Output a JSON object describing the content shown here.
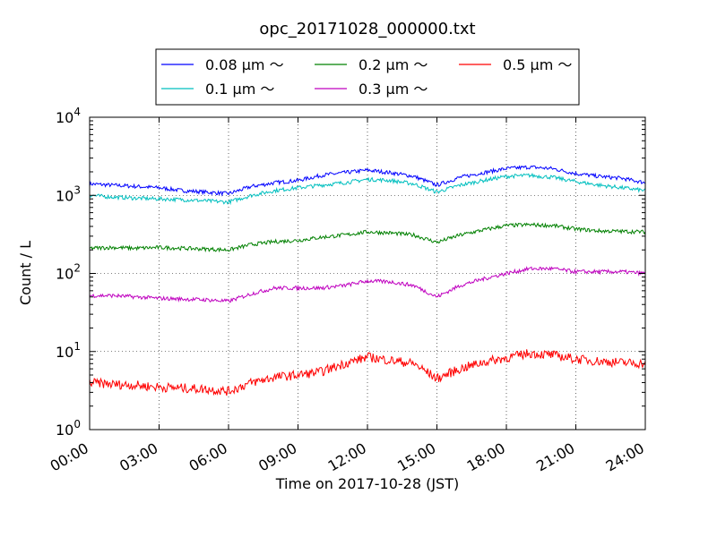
{
  "chart_data": {
    "type": "line",
    "title": "opc_20171028_000000.txt",
    "xlabel": "Time on 2017-10-28 (JST)",
    "ylabel": "Count / L",
    "xlim": [
      0,
      24
    ],
    "ylim": [
      1,
      10000
    ],
    "yscale": "log",
    "grid": true,
    "legend_position": "top-center",
    "x_tick_labels": [
      "00:00",
      "03:00",
      "06:00",
      "09:00",
      "12:00",
      "15:00",
      "18:00",
      "21:00",
      "24:00"
    ],
    "y_ticks": [
      {
        "base": "10",
        "exp": "0"
      },
      {
        "base": "10",
        "exp": "1"
      },
      {
        "base": "10",
        "exp": "2"
      },
      {
        "base": "10",
        "exp": "3"
      },
      {
        "base": "10",
        "exp": "4"
      }
    ],
    "x": [
      0,
      1,
      2,
      3,
      4,
      5,
      6,
      7,
      8,
      9,
      10,
      11,
      12,
      13,
      14,
      15,
      16,
      17,
      18,
      19,
      20,
      21,
      22,
      23,
      24
    ],
    "series": [
      {
        "name": "0.08 μm ～",
        "color": "#0000ff",
        "values": [
          1400,
          1350,
          1300,
          1250,
          1150,
          1100,
          1050,
          1300,
          1450,
          1550,
          1800,
          1950,
          2100,
          1950,
          1750,
          1350,
          1700,
          1950,
          2200,
          2300,
          2200,
          1900,
          1750,
          1650,
          1450
        ]
      },
      {
        "name": "0.1 μm ～",
        "color": "#00bfbf",
        "values": [
          1000,
          950,
          920,
          900,
          880,
          850,
          820,
          1000,
          1150,
          1250,
          1350,
          1450,
          1600,
          1550,
          1400,
          1100,
          1350,
          1550,
          1750,
          1800,
          1700,
          1500,
          1350,
          1250,
          1150
        ]
      },
      {
        "name": "0.2 μm ～",
        "color": "#008000",
        "values": [
          210,
          215,
          210,
          215,
          210,
          205,
          200,
          235,
          255,
          265,
          290,
          310,
          340,
          330,
          310,
          250,
          310,
          360,
          410,
          420,
          410,
          370,
          350,
          345,
          340
        ]
      },
      {
        "name": "0.3 μm ～",
        "color": "#bf00bf",
        "values": [
          52,
          52,
          50,
          48,
          47,
          46,
          44,
          55,
          65,
          65,
          65,
          70,
          80,
          78,
          70,
          50,
          70,
          85,
          100,
          115,
          115,
          105,
          105,
          105,
          100
        ]
      },
      {
        "name": "0.5 μm ～",
        "color": "#ff0000",
        "values": [
          4.0,
          3.8,
          3.7,
          3.5,
          3.4,
          3.3,
          3.1,
          4.0,
          4.7,
          5.0,
          5.5,
          7.0,
          8.5,
          7.7,
          7.0,
          4.5,
          6.0,
          7.3,
          8.3,
          9.5,
          9.0,
          8.0,
          7.5,
          7.2,
          7.0
        ]
      }
    ]
  }
}
